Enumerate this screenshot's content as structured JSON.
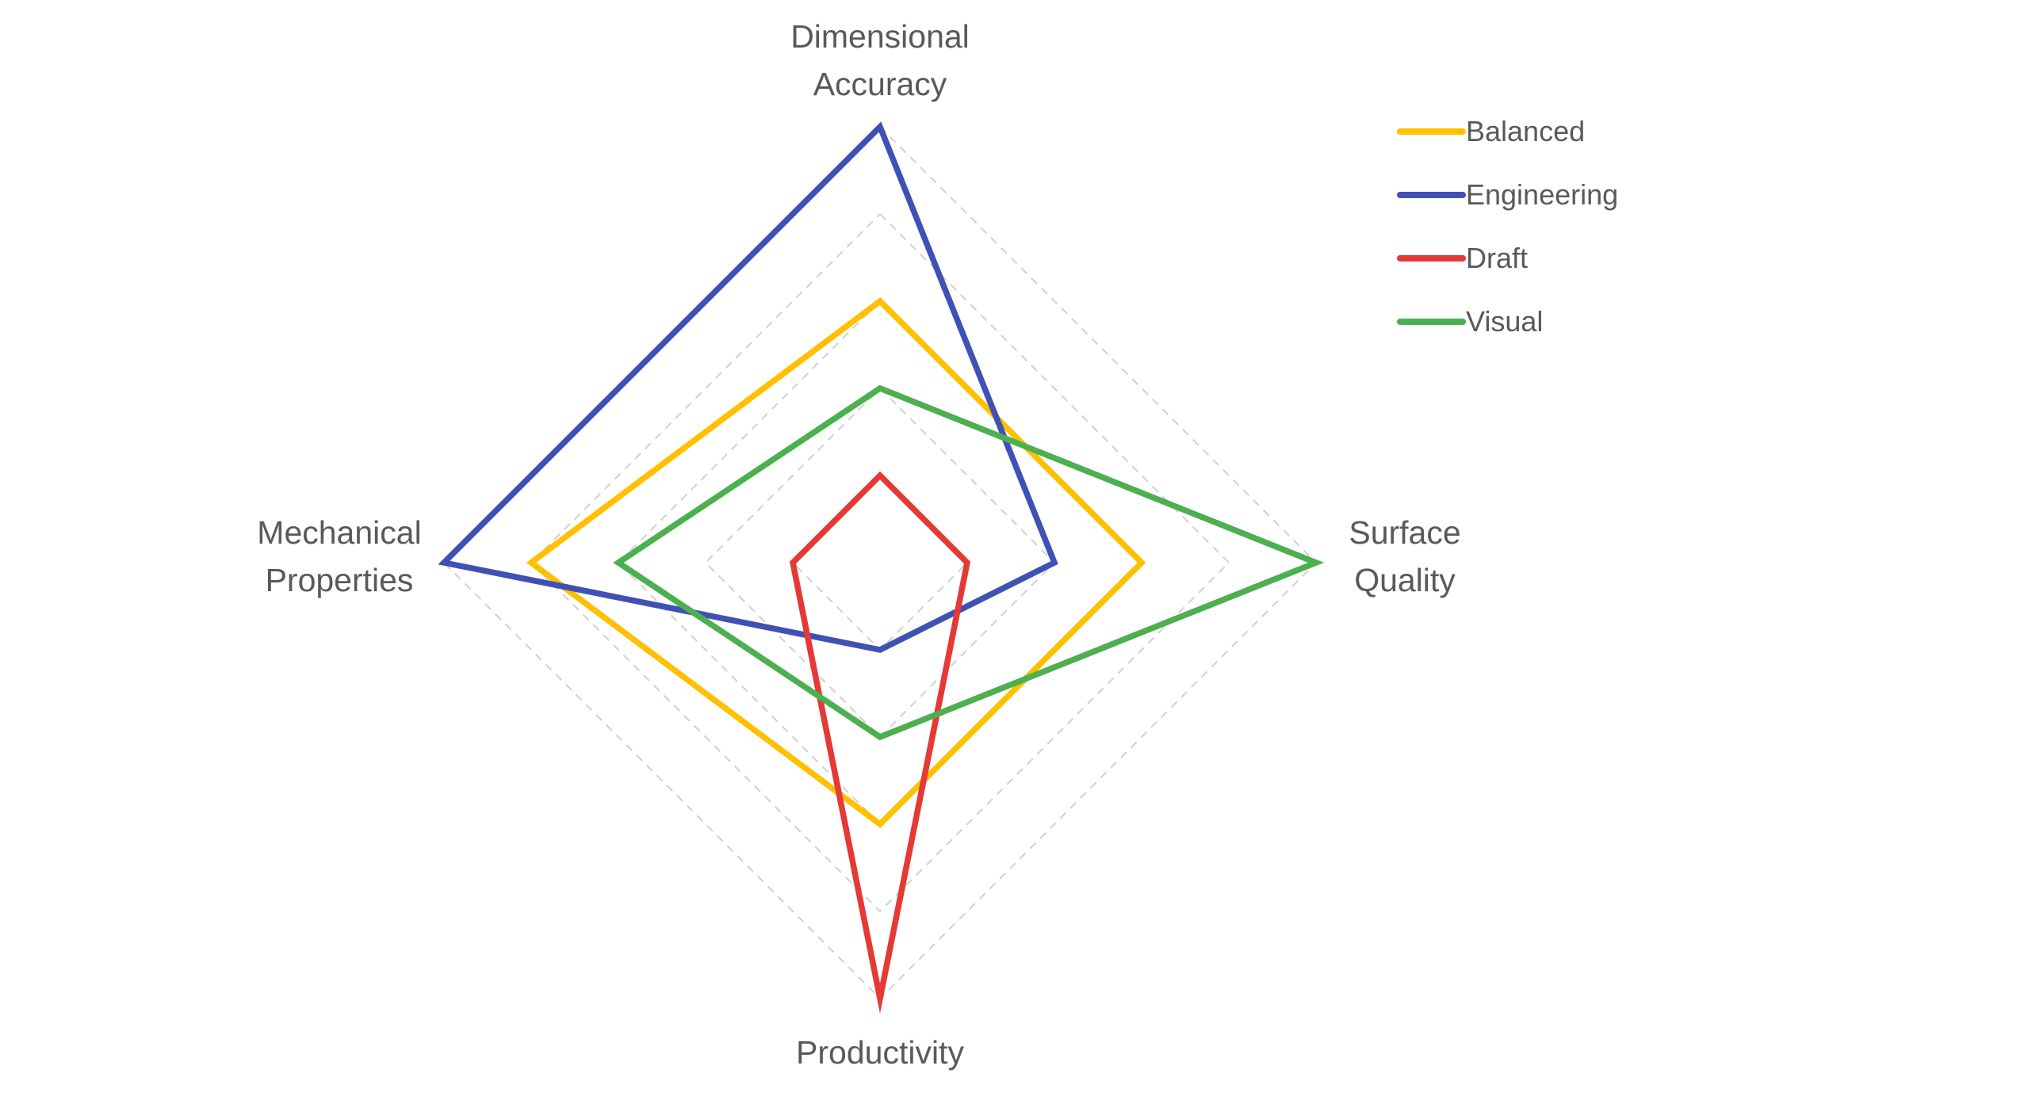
{
  "chart_data": {
    "type": "radar",
    "axes": [
      {
        "key": "dimensional_accuracy",
        "label_lines": [
          "Dimensional",
          "Accuracy"
        ]
      },
      {
        "key": "surface_quality",
        "label_lines": [
          "Surface",
          "Quality"
        ]
      },
      {
        "key": "productivity",
        "label_lines": [
          "Productivity"
        ]
      },
      {
        "key": "mechanical_properties",
        "label_lines": [
          "Mechanical",
          "Properties"
        ]
      }
    ],
    "range": [
      0,
      5
    ],
    "grid_rings": 5,
    "grid": true,
    "legend_position": "top-right",
    "series": [
      {
        "name": "Balanced",
        "color": "#FFC000",
        "values": [
          3,
          3,
          3,
          4
        ]
      },
      {
        "name": "Engineering",
        "color": "#3F51B5",
        "values": [
          5,
          2,
          1,
          5
        ]
      },
      {
        "name": "Draft",
        "color": "#E53935",
        "values": [
          1,
          1,
          5,
          1
        ]
      },
      {
        "name": "Visual",
        "color": "#4CAF50",
        "values": [
          2,
          5,
          2,
          3
        ]
      }
    ]
  }
}
